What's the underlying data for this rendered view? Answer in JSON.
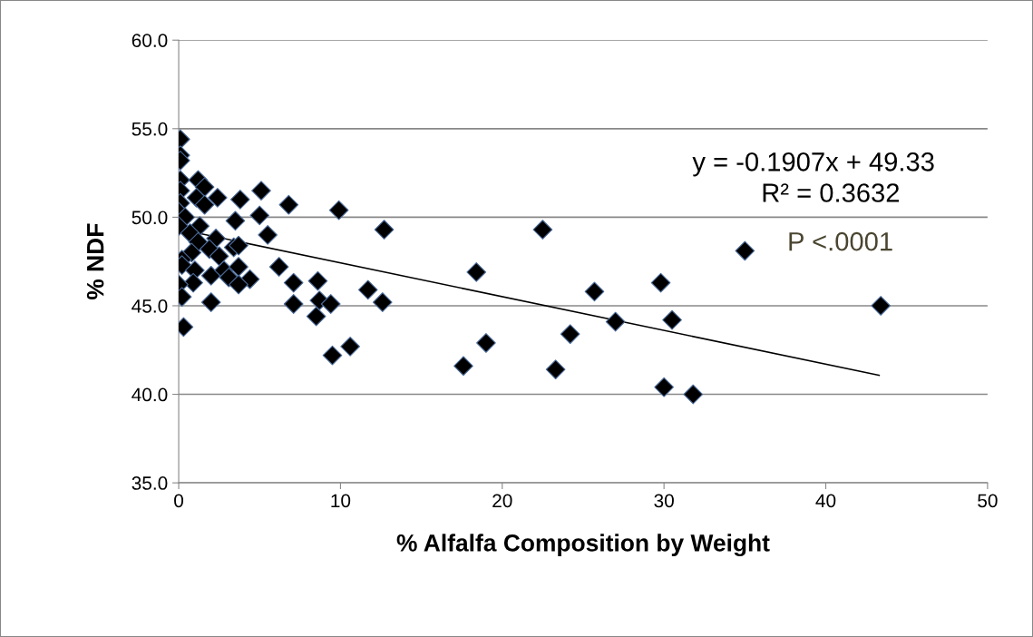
{
  "chart_data": {
    "type": "scatter",
    "xlabel": "% Alfalfa Composition by Weight",
    "ylabel": "% NDF",
    "xlim": [
      0,
      50
    ],
    "xticks": [
      0,
      10,
      20,
      30,
      40,
      50
    ],
    "ylim": [
      35,
      60
    ],
    "yticks": [
      {
        "value": 35,
        "label": "35.0"
      },
      {
        "value": 40,
        "label": "40.0"
      },
      {
        "value": 45,
        "label": "45.0"
      },
      {
        "value": 50,
        "label": "50.0"
      },
      {
        "value": 55,
        "label": "55.0"
      },
      {
        "value": 60,
        "label": "60.0"
      }
    ],
    "grid": "y",
    "legend": false,
    "annotations": [
      "y = -0.1907x + 49.33",
      "R² = 0.3632",
      "P <.0001"
    ],
    "series": [
      {
        "marker": "diamond",
        "color": "#000000",
        "x": [
          0.1,
          0.1,
          0.1,
          0.1,
          1.2,
          1.6,
          0.1,
          1.1,
          2.4,
          3.8,
          5.1,
          0.1,
          1.6,
          0.0,
          0.4,
          3.5,
          5.0,
          6.8,
          9.9,
          12.7,
          0.0,
          1.3,
          5.5,
          0.7,
          1.2,
          2.3,
          1.9,
          3.4,
          3.7,
          2.5,
          0.8,
          0.2,
          0.2,
          1.0,
          2.0,
          2.8,
          3.7,
          3.1,
          4.4,
          3.7,
          0.9,
          6.2,
          0.0,
          0.2,
          2.0,
          7.1,
          7.1,
          8.6,
          8.7,
          9.4,
          8.5,
          11.7,
          12.6,
          0.3,
          9.5,
          10.6,
          17.6,
          19.0,
          24.2,
          23.3,
          22.5,
          18.4,
          25.7,
          29.8,
          27.0,
          30.5,
          30.0,
          31.8,
          35.0,
          43.4
        ],
        "values": [
          54.4,
          53.5,
          53.2,
          52.1,
          52.1,
          51.7,
          51.5,
          51.1,
          51.1,
          51.0,
          51.5,
          50.8,
          50.7,
          50.3,
          50.0,
          49.8,
          50.1,
          50.7,
          50.4,
          49.3,
          49.5,
          49.5,
          49.0,
          49.1,
          48.6,
          48.8,
          48.2,
          48.3,
          48.4,
          47.8,
          48.0,
          47.6,
          47.3,
          47.0,
          46.7,
          47.0,
          47.2,
          46.6,
          46.5,
          46.2,
          46.3,
          47.2,
          46.2,
          45.5,
          45.2,
          46.3,
          45.1,
          46.4,
          45.3,
          45.1,
          44.4,
          45.9,
          45.2,
          43.8,
          42.2,
          42.7,
          41.6,
          42.9,
          43.4,
          41.4,
          49.3,
          46.9,
          45.8,
          46.3,
          44.1,
          44.2,
          40.4,
          40.0,
          48.1,
          45.0
        ]
      },
      {
        "type": "line",
        "color": "#000000",
        "line_style": "solid",
        "x": [
          0.2,
          43.3
        ],
        "values": [
          49.29,
          41.07
        ]
      }
    ]
  }
}
